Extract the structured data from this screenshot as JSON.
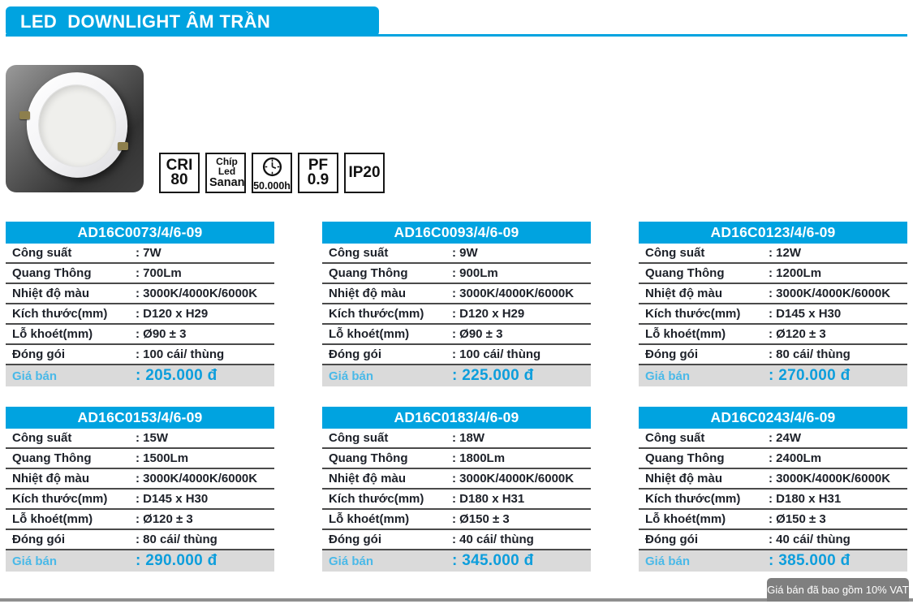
{
  "page": {
    "title": "LED  DOWNLIGHT ÂM TRẦN",
    "accent_color": "#00a3e0",
    "price_color": "#0d9edc",
    "price_label_color": "#4ab9e8",
    "vat_note": "Giá bán đã bao gồm 10% VAT"
  },
  "photo": {
    "description": "white recessed LED downlight on dark gradient background"
  },
  "badges": [
    {
      "icon": "cri-badge",
      "line1": "CRI",
      "line2": "80"
    },
    {
      "icon": "chip-badge",
      "line1": "Chíp Led",
      "line2": "Sanan"
    },
    {
      "icon": "clock-icon",
      "line1": "",
      "line2": "50.000h"
    },
    {
      "icon": "pf-badge",
      "line1": "PF",
      "line2": "0.9"
    },
    {
      "icon": "ip-badge",
      "line1": "IP20",
      "line2": ""
    }
  ],
  "spec_labels": [
    "Công suất",
    "Quang Thông",
    "Nhiệt độ màu",
    "Kích thước(mm)",
    "Lỗ khoét(mm)",
    "Đóng gói"
  ],
  "price_label": "Giá bán",
  "products": [
    {
      "code": "AD16C0073/4/6-09",
      "values": [
        ": 7W",
        ": 700Lm",
        ": 3000K/4000K/6000K",
        ": D120 x H29",
        ": Ø90 ± 3",
        ": 100 cái/ thùng"
      ],
      "price": ": 205.000 đ"
    },
    {
      "code": "AD16C0093/4/6-09",
      "values": [
        ": 9W",
        ": 900Lm",
        ": 3000K/4000K/6000K",
        ": D120 x H29",
        ": Ø90 ± 3",
        ": 100 cái/ thùng"
      ],
      "price": ": 225.000 đ"
    },
    {
      "code": "AD16C0123/4/6-09",
      "values": [
        ": 12W",
        ": 1200Lm",
        ": 3000K/4000K/6000K",
        ": D145 x H30",
        ": Ø120 ± 3",
        ": 80 cái/ thùng"
      ],
      "price": ": 270.000 đ"
    },
    {
      "code": "AD16C0153/4/6-09",
      "values": [
        ": 15W",
        ": 1500Lm",
        ": 3000K/4000K/6000K",
        ": D145 x H30",
        ": Ø120 ± 3",
        ": 80 cái/ thùng"
      ],
      "price": ": 290.000 đ"
    },
    {
      "code": "AD16C0183/4/6-09",
      "values": [
        ": 18W",
        ": 1800Lm",
        ": 3000K/4000K/6000K",
        ": D180 x H31",
        ": Ø150 ± 3",
        ": 40 cái/ thùng"
      ],
      "price": ": 345.000 đ"
    },
    {
      "code": "AD16C0243/4/6-09",
      "values": [
        ": 24W",
        ": 2400Lm",
        ": 3000K/4000K/6000K",
        ": D180 x H31",
        ": Ø150 ± 3",
        ": 40 cái/ thùng"
      ],
      "price": ": 385.000 đ"
    }
  ]
}
